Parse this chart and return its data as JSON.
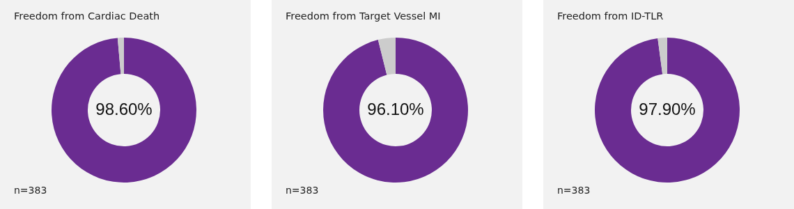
{
  "chart_data": [
    {
      "type": "donut",
      "title": "Freedom from Cardiac Death",
      "categories": [
        null,
        null
      ],
      "values": [
        98.6,
        1.4
      ],
      "colors": [
        "#6a2c91",
        "#cccccc"
      ],
      "value_labels": [
        "98.60%",
        null
      ],
      "annotations": [
        "n=383"
      ]
    },
    {
      "type": "donut",
      "title": "Freedom from Target Vessel MI",
      "categories": [
        null,
        null
      ],
      "values": [
        96.1,
        3.9
      ],
      "colors": [
        "#6a2c91",
        "#cccccc"
      ],
      "value_labels": [
        "96.10%",
        null
      ],
      "annotations": [
        "n=383"
      ]
    },
    {
      "type": "donut",
      "title": "Freedom from ID-TLR",
      "categories": [
        null,
        null
      ],
      "values": [
        97.9,
        2.1
      ],
      "colors": [
        "#6a2c91",
        "#cccccc"
      ],
      "value_labels": [
        "97.90%",
        null
      ],
      "annotations": [
        "n=383"
      ]
    }
  ]
}
